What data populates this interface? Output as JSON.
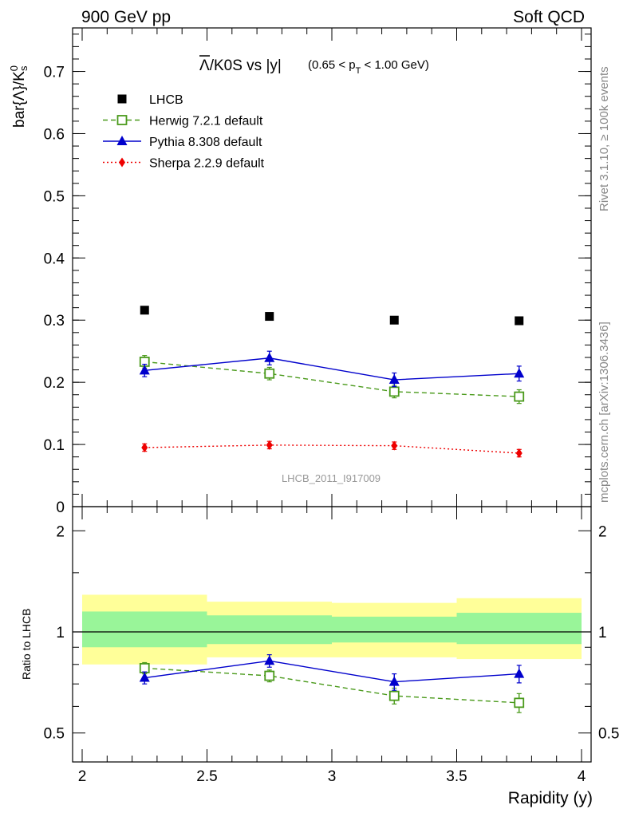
{
  "header": {
    "left": "900 GeV pp",
    "right": "Soft QCD"
  },
  "side_labels": {
    "rivet": "Rivet 3.1.10, ≥ 100k events",
    "mcplots": "mcplots.cern.ch [arXiv:1306.3436]"
  },
  "plot": {
    "title_main": "Λ/K0S vs |y|",
    "title_bar_symbol": "Λ",
    "title_rest": "/K0S vs |y|",
    "title_cut": "(0.65 < p",
    "title_cut_sub": "T",
    "title_cut_end": " < 1.00 GeV)",
    "watermark": "LHCB_2011_I917009",
    "ylabel_main": "bar{Λ}/K",
    "ylabel_sup": "0",
    "ylabel_sub": "s",
    "ylabel_ratio": "Ratio to LHCB",
    "xlabel": "Rapidity (y)"
  },
  "chart_data": [
    {
      "type": "scatter",
      "x": [
        2.25,
        2.75,
        3.25,
        3.75
      ],
      "xlim": [
        2,
        4
      ],
      "ylim": [
        0,
        0.77
      ],
      "yticks": [
        "0",
        "0.1",
        "0.2",
        "0.3",
        "0.4",
        "0.5",
        "0.6",
        "0.7"
      ],
      "xticks": [
        "2",
        "2.5",
        "3",
        "3.5",
        "4"
      ],
      "legend_position": "top-left",
      "series": [
        {
          "name": "LHCB",
          "values": [
            0.316,
            0.306,
            0.3,
            0.299
          ],
          "errors": [
            0.003,
            0.003,
            0.003,
            0.003
          ],
          "color": "#000000",
          "marker": "square-filled",
          "line": "none"
        },
        {
          "name": "Herwig 7.2.1 default",
          "values": [
            0.233,
            0.214,
            0.185,
            0.177
          ],
          "errors": [
            0.01,
            0.01,
            0.01,
            0.011
          ],
          "color": "#4a9a1b",
          "marker": "square-open",
          "line": "dashed"
        },
        {
          "name": "Pythia 8.308 default",
          "values": [
            0.219,
            0.239,
            0.204,
            0.214
          ],
          "errors": [
            0.01,
            0.011,
            0.011,
            0.012
          ],
          "color": "#0000cc",
          "marker": "triangle",
          "line": "solid"
        },
        {
          "name": "Sherpa 2.2.9 default",
          "values": [
            0.095,
            0.099,
            0.098,
            0.086
          ],
          "errors": [
            0.006,
            0.006,
            0.006,
            0.006
          ],
          "color": "#ee0000",
          "marker": "diamond",
          "line": "dotted"
        }
      ]
    },
    {
      "type": "scatter",
      "x": [
        2.25,
        2.75,
        3.25,
        3.75
      ],
      "xlim": [
        2,
        4
      ],
      "ylim": [
        0.41,
        2.36
      ],
      "yscale": "log",
      "yticks": [
        "0.5",
        "1",
        "2"
      ],
      "xticks": [
        "2",
        "2.5",
        "3",
        "3.5",
        "4"
      ],
      "bands": {
        "x_edges": [
          [
            2.0,
            2.5
          ],
          [
            2.5,
            3.0
          ],
          [
            3.0,
            3.5
          ],
          [
            3.5,
            4.0
          ]
        ],
        "outer": [
          [
            0.8,
            1.29
          ],
          [
            0.84,
            1.23
          ],
          [
            0.84,
            1.22
          ],
          [
            0.83,
            1.26
          ]
        ],
        "inner": [
          [
            0.9,
            1.15
          ],
          [
            0.92,
            1.12
          ],
          [
            0.93,
            1.11
          ],
          [
            0.92,
            1.14
          ]
        ],
        "outer_color": "#ffff99",
        "inner_color": "#99f599"
      },
      "series": [
        {
          "name": "Herwig 7.2.1 default",
          "values": [
            0.78,
            0.74,
            0.645,
            0.615
          ],
          "errors": [
            0.03,
            0.03,
            0.035,
            0.04
          ],
          "color": "#4a9a1b",
          "marker": "square-open",
          "line": "dashed"
        },
        {
          "name": "Pythia 8.308 default",
          "values": [
            0.73,
            0.82,
            0.71,
            0.75
          ],
          "errors": [
            0.03,
            0.035,
            0.04,
            0.045
          ],
          "color": "#0000cc",
          "marker": "triangle",
          "line": "solid"
        }
      ]
    }
  ]
}
